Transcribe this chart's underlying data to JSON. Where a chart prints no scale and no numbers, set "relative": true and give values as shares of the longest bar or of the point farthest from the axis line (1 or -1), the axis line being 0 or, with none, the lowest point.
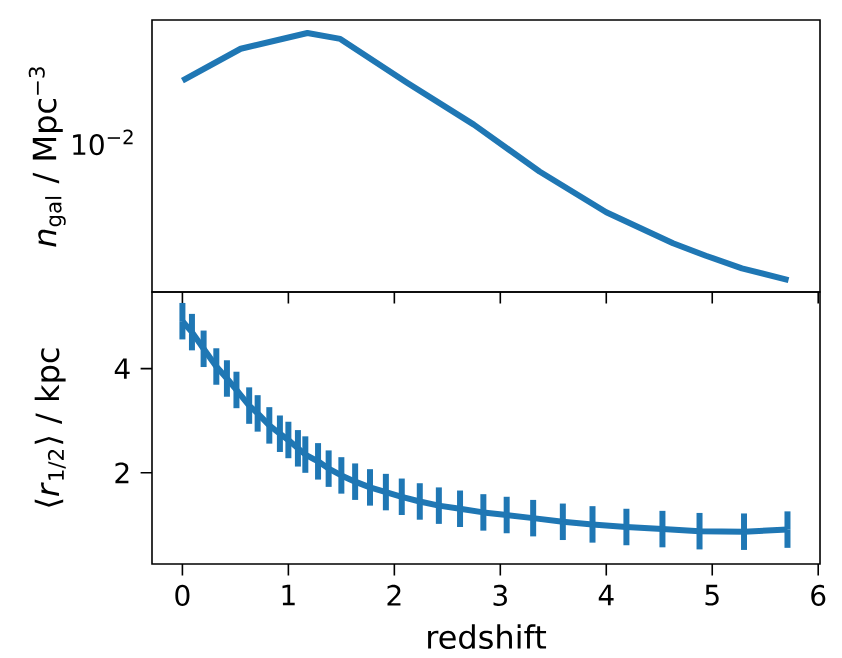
{
  "chart_data": [
    {
      "type": "line",
      "ylabel": "*n*$_{gal}$ / Mpc$^{−3}$",
      "color": "#1f77b4",
      "tick_labels": false,
      "relative": true,
      "annotations": [
        "10$^{−2}$"
      ],
      "x": [
        0,
        0.55,
        1.18,
        1.49,
        2.12,
        2.75,
        3.37,
        4.0,
        4.63,
        4.94,
        5.28,
        5.72
      ],
      "values": [
        0.816,
        0.939,
        1,
        0.977,
        0.808,
        0.646,
        0.465,
        0.308,
        0.188,
        0.14,
        0.0914,
        0.046
      ],
      "xlim": [
        -0.287,
        6.017
      ],
      "xticks": [
        0,
        1,
        2,
        3,
        4,
        5,
        6
      ]
    },
    {
      "type": "line",
      "xlabel": "redshift",
      "ylabel": "⟨*r*$_{1/2}$⟩ / kpc",
      "color": "#1f77b4",
      "x": [
        0,
        0.09,
        0.2,
        0.32,
        0.42,
        0.51,
        0.63,
        0.71,
        0.82,
        0.92,
        1.0,
        1.09,
        1.16,
        1.28,
        1.38,
        1.5,
        1.63,
        1.77,
        1.92,
        2.07,
        2.24,
        2.42,
        2.62,
        2.84,
        3.06,
        3.31,
        3.59,
        3.87,
        4.19,
        4.53,
        4.88,
        5.3,
        5.71
      ],
      "values": [
        4.91,
        4.7,
        4.38,
        4.04,
        3.81,
        3.59,
        3.29,
        3.14,
        2.91,
        2.75,
        2.63,
        2.47,
        2.35,
        2.22,
        2.08,
        1.95,
        1.83,
        1.72,
        1.63,
        1.54,
        1.45,
        1.37,
        1.31,
        1.24,
        1.19,
        1.13,
        1.06,
        1.01,
        0.96,
        0.92,
        0.88,
        0.87,
        0.91
      ],
      "errors": [
        0.35,
        0.35,
        0.35,
        0.35,
        0.35,
        0.35,
        0.35,
        0.35,
        0.35,
        0.35,
        0.35,
        0.35,
        0.35,
        0.35,
        0.35,
        0.35,
        0.35,
        0.35,
        0.35,
        0.35,
        0.35,
        0.35,
        0.35,
        0.35,
        0.35,
        0.35,
        0.35,
        0.35,
        0.35,
        0.35,
        0.35,
        0.35,
        0.35
      ],
      "xlim": [
        -0.287,
        6.017
      ],
      "xticks": [
        0,
        1,
        2,
        3,
        4,
        5,
        6
      ],
      "ylim": [
        0.25,
        5.47
      ],
      "yticks": [
        2,
        4
      ]
    }
  ]
}
